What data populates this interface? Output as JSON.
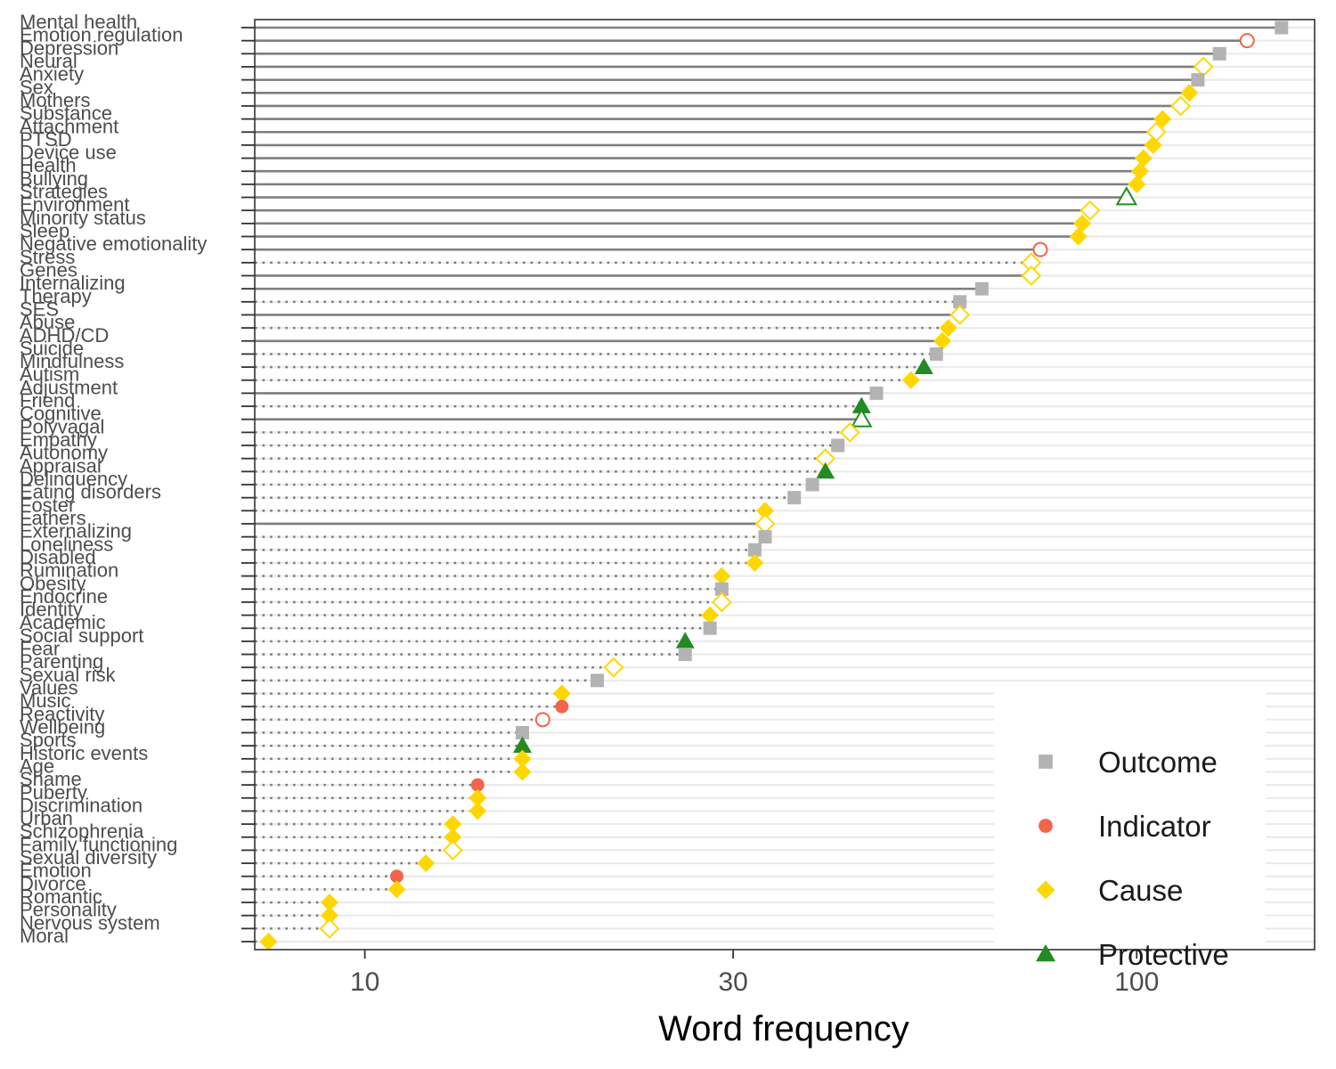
{
  "chart_data": {
    "type": "scatter",
    "subtype": "lollipop-dot",
    "title": "",
    "xlabel": "Word frequency",
    "ylabel": "",
    "x_scale": "log10",
    "xlim": [
      7.2,
      170
    ],
    "x_ticks": [
      10,
      30,
      100
    ],
    "x_tick_labels": [
      "10",
      "30",
      "100"
    ],
    "grid": "horizontal",
    "legend_position": "bottom-right",
    "legend": [
      {
        "role": "Outcome",
        "label": "Outcome",
        "color": "#b3b3b3",
        "shape": "square"
      },
      {
        "role": "Indicator",
        "label": "Indicator",
        "color": "#f4634a",
        "shape": "circle"
      },
      {
        "role": "Cause",
        "label": "Cause",
        "color": "#ffd700",
        "shape": "diamond"
      },
      {
        "role": "Protective",
        "label": "Protective",
        "color": "#228b22",
        "shape": "triangle"
      }
    ],
    "colors": {
      "segment": "#7f7f7f",
      "grid": "#ebebeb",
      "axis": "#333333"
    },
    "points": [
      {
        "label": "Mental health",
        "value": 154,
        "role": "Outcome",
        "filled": true,
        "line": "solid"
      },
      {
        "label": "Emotion regulation",
        "value": 139,
        "role": "Indicator",
        "filled": false,
        "line": "solid"
      },
      {
        "label": "Depression",
        "value": 128,
        "role": "Outcome",
        "filled": true,
        "line": "solid"
      },
      {
        "label": "Neural",
        "value": 122,
        "role": "Cause",
        "filled": false,
        "line": "solid"
      },
      {
        "label": "Anxiety",
        "value": 120,
        "role": "Outcome",
        "filled": true,
        "line": "solid"
      },
      {
        "label": "Sex",
        "value": 117,
        "role": "Cause",
        "filled": true,
        "line": "solid"
      },
      {
        "label": "Mothers",
        "value": 114,
        "role": "Cause",
        "filled": false,
        "line": "solid"
      },
      {
        "label": "Substance",
        "value": 108,
        "role": "Cause",
        "filled": true,
        "line": "solid"
      },
      {
        "label": "Attachment",
        "value": 106,
        "role": "Cause",
        "filled": false,
        "line": "solid"
      },
      {
        "label": "PTSD",
        "value": 105,
        "role": "Cause",
        "filled": true,
        "line": "solid"
      },
      {
        "label": "Device use",
        "value": 102,
        "role": "Cause",
        "filled": true,
        "line": "solid"
      },
      {
        "label": "Health",
        "value": 101,
        "role": "Cause",
        "filled": true,
        "line": "solid"
      },
      {
        "label": "Bullying",
        "value": 100,
        "role": "Cause",
        "filled": true,
        "line": "solid"
      },
      {
        "label": "Strategies",
        "value": 97,
        "role": "Protective",
        "filled": false,
        "line": "solid"
      },
      {
        "label": "Environment",
        "value": 87,
        "role": "Cause",
        "filled": false,
        "line": "solid"
      },
      {
        "label": "Minority status",
        "value": 85,
        "role": "Cause",
        "filled": true,
        "line": "solid"
      },
      {
        "label": "Sleep",
        "value": 84,
        "role": "Cause",
        "filled": true,
        "line": "solid"
      },
      {
        "label": "Negative emotionality",
        "value": 75,
        "role": "Indicator",
        "filled": false,
        "line": "solid"
      },
      {
        "label": "Stress",
        "value": 73,
        "role": "Cause",
        "filled": false,
        "line": "dotted"
      },
      {
        "label": "Genes",
        "value": 73,
        "role": "Cause",
        "filled": false,
        "line": "solid"
      },
      {
        "label": "Internalizing",
        "value": 63,
        "role": "Outcome",
        "filled": true,
        "line": "solid"
      },
      {
        "label": "Therapy",
        "value": 59,
        "role": "Outcome",
        "filled": true,
        "line": "dotted"
      },
      {
        "label": "SES",
        "value": 59,
        "role": "Cause",
        "filled": false,
        "line": "solid"
      },
      {
        "label": "Abuse",
        "value": 57,
        "role": "Cause",
        "filled": true,
        "line": "dotted"
      },
      {
        "label": "ADHD/CD",
        "value": 56,
        "role": "Cause",
        "filled": true,
        "line": "solid"
      },
      {
        "label": "Suicide",
        "value": 55,
        "role": "Outcome",
        "filled": true,
        "line": "dotted"
      },
      {
        "label": "Mindfulness",
        "value": 53,
        "role": "Protective",
        "filled": true,
        "line": "dotted"
      },
      {
        "label": "Autism",
        "value": 51,
        "role": "Cause",
        "filled": true,
        "line": "dotted"
      },
      {
        "label": "Adjustment",
        "value": 46,
        "role": "Outcome",
        "filled": true,
        "line": "solid"
      },
      {
        "label": "Friend",
        "value": 44,
        "role": "Protective",
        "filled": true,
        "line": "dotted"
      },
      {
        "label": "Cognitive",
        "value": 44,
        "role": "Protective",
        "filled": false,
        "line": "solid"
      },
      {
        "label": "Polyvagal",
        "value": 42.5,
        "role": "Cause",
        "filled": false,
        "line": "dotted"
      },
      {
        "label": "Empathy",
        "value": 41,
        "role": "Outcome",
        "filled": true,
        "line": "dotted"
      },
      {
        "label": "Autonomy",
        "value": 39.5,
        "role": "Cause",
        "filled": false,
        "line": "dotted"
      },
      {
        "label": "Appraisal",
        "value": 39.5,
        "role": "Protective",
        "filled": true,
        "line": "dotted"
      },
      {
        "label": "Delinquency",
        "value": 38,
        "role": "Outcome",
        "filled": true,
        "line": "dotted"
      },
      {
        "label": "Eating disorders",
        "value": 36,
        "role": "Outcome",
        "filled": true,
        "line": "dotted"
      },
      {
        "label": "Foster",
        "value": 33,
        "role": "Cause",
        "filled": true,
        "line": "dotted"
      },
      {
        "label": "Fathers",
        "value": 33,
        "role": "Cause",
        "filled": false,
        "line": "solid"
      },
      {
        "label": "Externalizing",
        "value": 33,
        "role": "Outcome",
        "filled": true,
        "line": "dotted"
      },
      {
        "label": "Loneliness",
        "value": 32,
        "role": "Outcome",
        "filled": true,
        "line": "dotted"
      },
      {
        "label": "Disabled",
        "value": 32,
        "role": "Cause",
        "filled": true,
        "line": "dotted"
      },
      {
        "label": "Rumination",
        "value": 29,
        "role": "Cause",
        "filled": true,
        "line": "dotted"
      },
      {
        "label": "Obesity",
        "value": 29,
        "role": "Outcome",
        "filled": true,
        "line": "dotted"
      },
      {
        "label": "Endocrine",
        "value": 29,
        "role": "Cause",
        "filled": false,
        "line": "dotted"
      },
      {
        "label": "Identity",
        "value": 28,
        "role": "Cause",
        "filled": true,
        "line": "dotted"
      },
      {
        "label": "Academic",
        "value": 28,
        "role": "Outcome",
        "filled": true,
        "line": "dotted"
      },
      {
        "label": "Social support",
        "value": 26,
        "role": "Protective",
        "filled": true,
        "line": "dotted"
      },
      {
        "label": "Fear",
        "value": 26,
        "role": "Outcome",
        "filled": true,
        "line": "dotted"
      },
      {
        "label": "Parenting",
        "value": 21,
        "role": "Cause",
        "filled": false,
        "line": "dotted"
      },
      {
        "label": "Sexual risk",
        "value": 20,
        "role": "Outcome",
        "filled": true,
        "line": "dotted"
      },
      {
        "label": "Values",
        "value": 18,
        "role": "Cause",
        "filled": true,
        "line": "dotted"
      },
      {
        "label": "Music",
        "value": 18,
        "role": "Indicator",
        "filled": true,
        "line": "dotted"
      },
      {
        "label": "Reactivity",
        "value": 17,
        "role": "Indicator",
        "filled": false,
        "line": "dotted"
      },
      {
        "label": "Wellbeing",
        "value": 16,
        "role": "Outcome",
        "filled": true,
        "line": "dotted"
      },
      {
        "label": "Sports",
        "value": 16,
        "role": "Protective",
        "filled": true,
        "line": "dotted"
      },
      {
        "label": "Historic events",
        "value": 16,
        "role": "Cause",
        "filled": true,
        "line": "dotted"
      },
      {
        "label": "Age",
        "value": 16,
        "role": "Cause",
        "filled": true,
        "line": "dotted"
      },
      {
        "label": "Shame",
        "value": 14,
        "role": "Indicator",
        "filled": true,
        "line": "dotted"
      },
      {
        "label": "Puberty",
        "value": 14,
        "role": "Cause",
        "filled": true,
        "line": "dotted"
      },
      {
        "label": "Discrimination",
        "value": 14,
        "role": "Cause",
        "filled": true,
        "line": "dotted"
      },
      {
        "label": "Urban",
        "value": 13,
        "role": "Cause",
        "filled": true,
        "line": "dotted"
      },
      {
        "label": "Schizophrenia",
        "value": 13,
        "role": "Cause",
        "filled": true,
        "line": "dotted"
      },
      {
        "label": "Family functioning",
        "value": 13,
        "role": "Cause",
        "filled": false,
        "line": "dotted"
      },
      {
        "label": "Sexual diversity",
        "value": 12,
        "role": "Cause",
        "filled": true,
        "line": "dotted"
      },
      {
        "label": "Emotion",
        "value": 11,
        "role": "Indicator",
        "filled": true,
        "line": "dotted"
      },
      {
        "label": "Divorce",
        "value": 11,
        "role": "Cause",
        "filled": true,
        "line": "dotted"
      },
      {
        "label": "Romantic",
        "value": 9,
        "role": "Cause",
        "filled": true,
        "line": "dotted"
      },
      {
        "label": "Personality",
        "value": 9,
        "role": "Cause",
        "filled": true,
        "line": "dotted"
      },
      {
        "label": "Nervous system",
        "value": 9,
        "role": "Cause",
        "filled": false,
        "line": "dotted"
      },
      {
        "label": "Moral",
        "value": 7.5,
        "role": "Cause",
        "filled": true,
        "line": "dotted"
      }
    ]
  }
}
